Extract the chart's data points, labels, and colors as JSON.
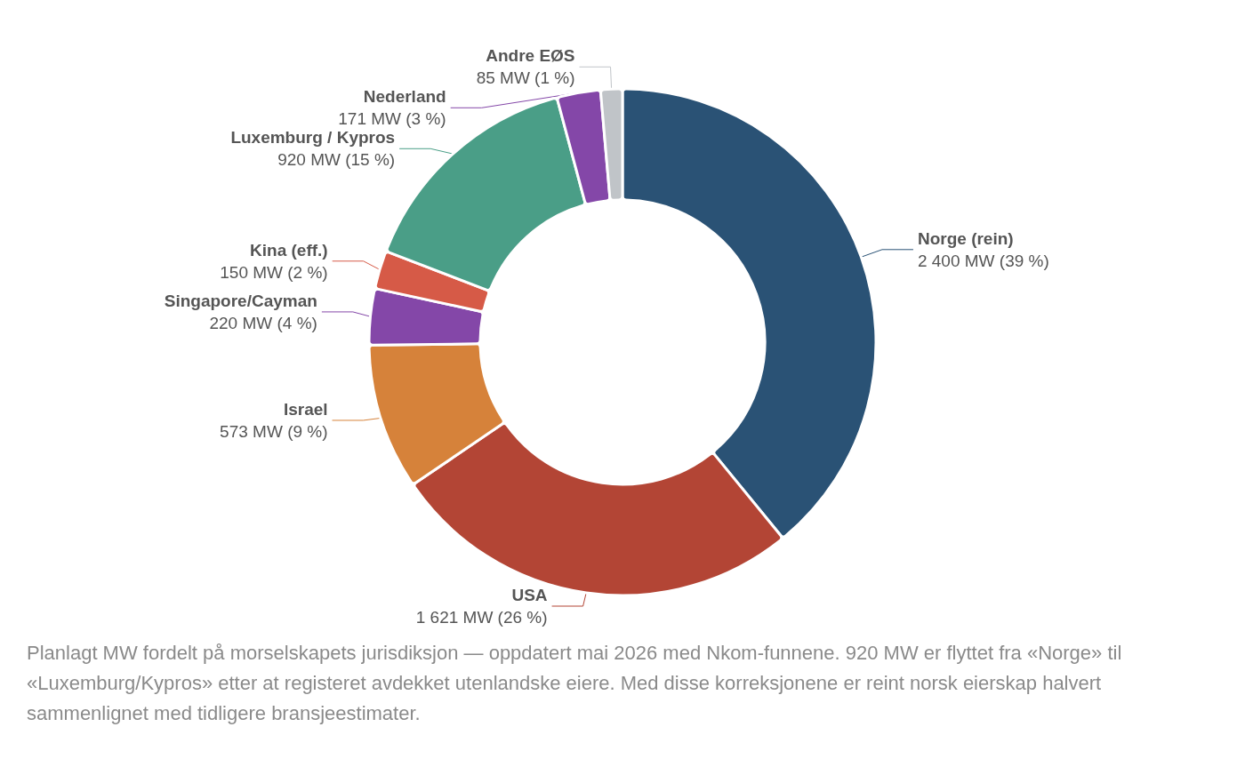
{
  "chart_data": {
    "type": "donut",
    "categories": [
      "Norge (rein)",
      "USA",
      "Israel",
      "Singapore/Cayman",
      "Kina (eff.)",
      "Luxemburg / Kypros",
      "Nederland",
      "Andre EØS"
    ],
    "values": [
      2400,
      1621,
      573,
      220,
      150,
      920,
      171,
      85
    ],
    "value_labels": [
      "2 400 MW (39 %)",
      "1 621 MW (26 %)",
      "573 MW (9 %)",
      "220 MW (4 %)",
      "150 MW (2 %)",
      "920 MW (15 %)",
      "171 MW (3 %)",
      "85 MW (1 %)"
    ],
    "colors": [
      "#2a5275",
      "#b34535",
      "#d6823a",
      "#8447a8",
      "#d65a47",
      "#4a9e87",
      "#8447a8",
      "#c0c4c8"
    ],
    "legend": false,
    "annotations": [
      "Planlagt MW fordelt på morselskapets jurisdiksjon — oppdatert mai 2026 med Nkom-funnene. 920 MW er flyttet fra «Norge» til «Luxemburg/Kypros» etter at registeret avdekket utenlandske eiere. Med disse korreksjonene er reint norsk eierskap halvert sammenlignet med tidligere bransjeestimater."
    ]
  }
}
